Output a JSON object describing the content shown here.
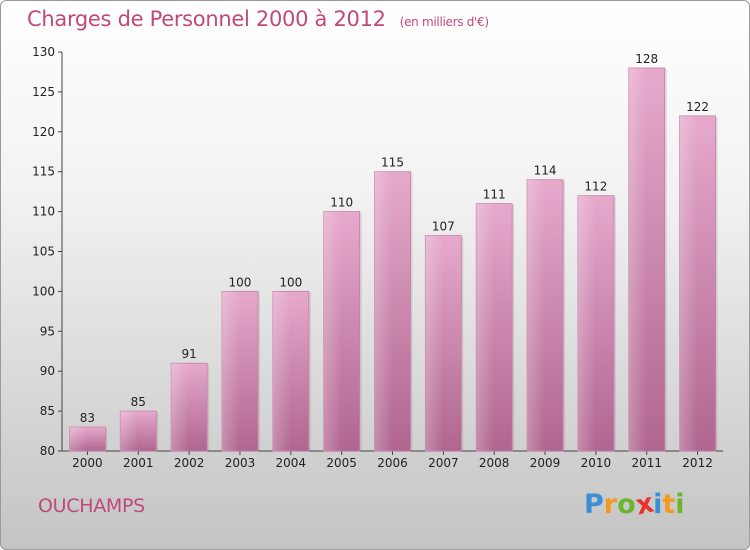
{
  "header": {
    "title": "Charges de Personnel 2000 à 2012",
    "subtitle": "(en milliers d'€)"
  },
  "footer": {
    "city": "OUCHAMPS",
    "logo_letters": [
      "P",
      "r",
      "o",
      "x",
      "i",
      "t",
      "i"
    ],
    "logo_colors": [
      "#3a8fd6",
      "#f29a1e",
      "#6cb52d",
      "#e8342b",
      "#3a8fd6",
      "#f29a1e",
      "#6cb52d"
    ]
  },
  "chart_data": {
    "type": "bar",
    "title": "Charges de Personnel 2000 à 2012",
    "subtitle": "(en milliers d'€)",
    "xlabel": "",
    "ylabel": "",
    "categories": [
      "2000",
      "2001",
      "2002",
      "2003",
      "2004",
      "2005",
      "2006",
      "2007",
      "2008",
      "2009",
      "2010",
      "2011",
      "2012"
    ],
    "values": [
      83,
      85,
      91,
      100,
      100,
      110,
      115,
      107,
      111,
      114,
      112,
      128,
      122
    ],
    "ylim": [
      80,
      130
    ],
    "yticks": [
      80,
      85,
      90,
      95,
      100,
      105,
      110,
      115,
      120,
      125,
      130
    ],
    "grid": false,
    "legend": "none",
    "bar_color": "#d98cb5"
  }
}
